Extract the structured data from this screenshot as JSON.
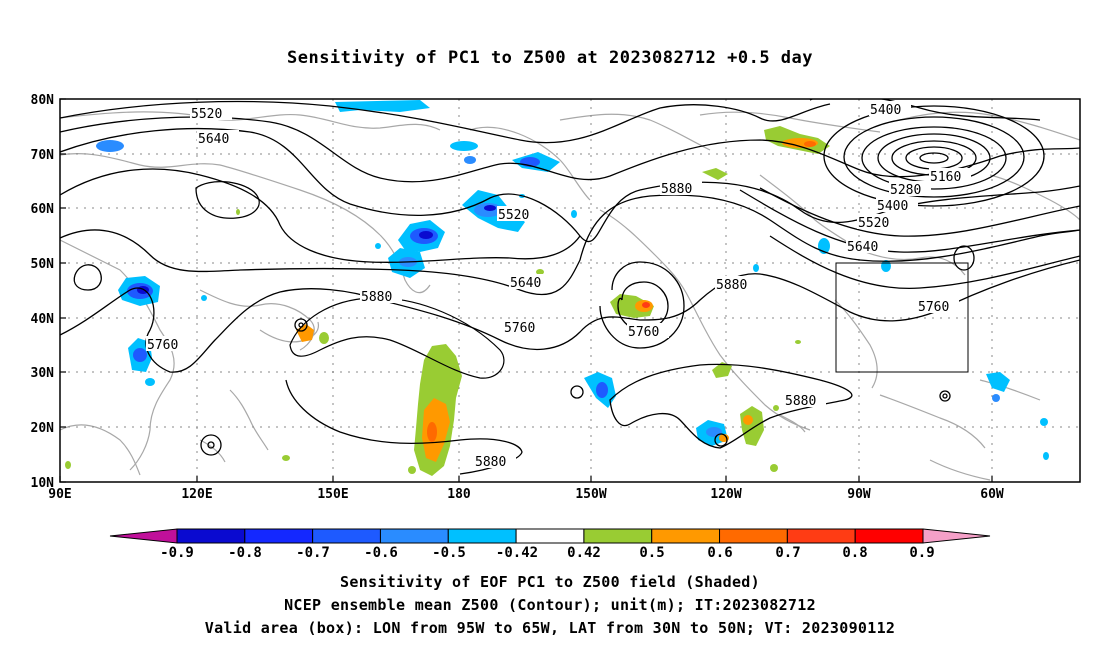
{
  "title": "Sensitivity of PC1 to Z500 at 2023082712 +0.5 day",
  "lat_labels": [
    "80N",
    "70N",
    "60N",
    "50N",
    "40N",
    "30N",
    "20N",
    "10N"
  ],
  "lon_labels": [
    "90E",
    "120E",
    "150E",
    "180",
    "150W",
    "120W",
    "90W",
    "60W"
  ],
  "contour_labels": [
    {
      "text": "5520"
    },
    {
      "text": "5640"
    },
    {
      "text": "5520"
    },
    {
      "text": "5640"
    },
    {
      "text": "5880"
    },
    {
      "text": "5760"
    },
    {
      "text": "5760"
    },
    {
      "text": "5880"
    },
    {
      "text": "5880"
    },
    {
      "text": "5760"
    },
    {
      "text": "5880"
    },
    {
      "text": "5880"
    },
    {
      "text": "5400"
    },
    {
      "text": "5160"
    },
    {
      "text": "5280"
    },
    {
      "text": "5400"
    },
    {
      "text": "5520"
    },
    {
      "text": "5640"
    },
    {
      "text": "5760"
    },
    {
      "text": "5760"
    }
  ],
  "colorbar": {
    "ticks": [
      "-0.9",
      "-0.8",
      "-0.7",
      "-0.6",
      "-0.5",
      "-0.42",
      "0.42",
      "0.5",
      "0.6",
      "0.7",
      "0.8",
      "0.9"
    ],
    "colors": [
      "#c0109a",
      "#0a0ad0",
      "#1428ff",
      "#1e5aff",
      "#2a8cff",
      "#00c0ff",
      "#ffffff",
      "#99cc33",
      "#ff9900",
      "#ff6a00",
      "#ff3c14",
      "#ff0000",
      "#f5a0c8"
    ]
  },
  "captions": [
    "Sensitivity of EOF PC1 to Z500 field (Shaded)",
    "NCEP ensemble mean Z500 (Contour); unit(m); IT:2023082712",
    "Valid area (box): LON from 95W to 65W, LAT from 30N to 50N; VT: 2023090112"
  ]
}
